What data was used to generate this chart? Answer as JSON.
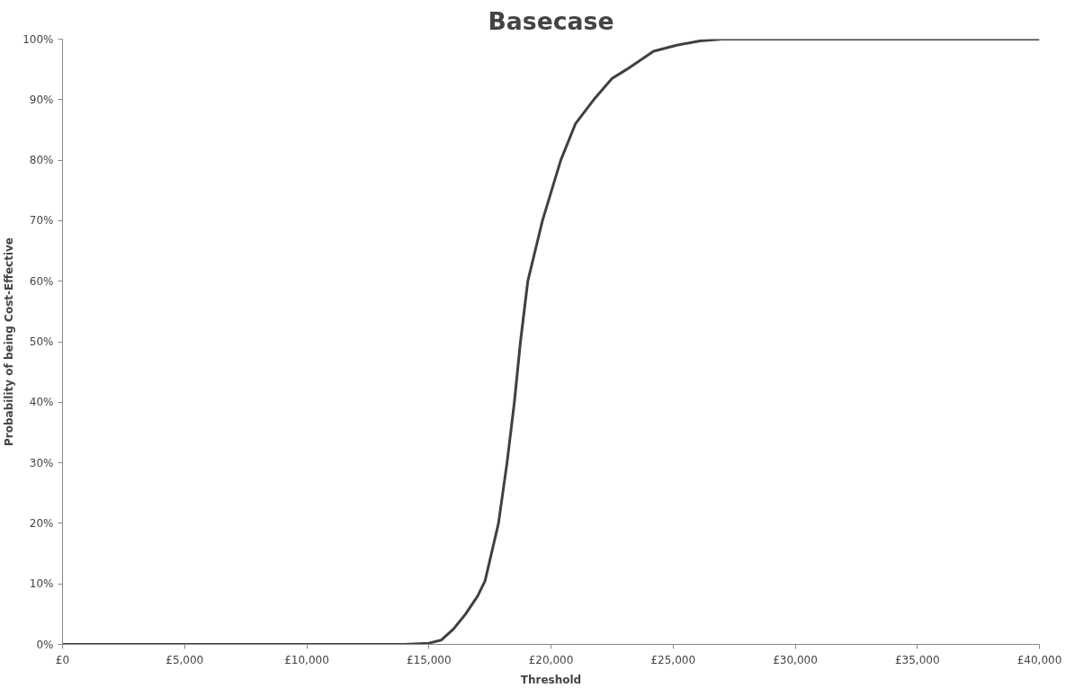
{
  "chart_data": {
    "type": "line",
    "title": "Basecase",
    "xlabel": "Threshold",
    "ylabel": "Probability of being Cost-Effective",
    "xlim": [
      0,
      40000
    ],
    "ylim": [
      0,
      100
    ],
    "xticks": [
      {
        "value": 0,
        "label": "£0"
      },
      {
        "value": 5000,
        "label": "£5,000"
      },
      {
        "value": 10000,
        "label": "£10,000"
      },
      {
        "value": 15000,
        "label": "£15,000"
      },
      {
        "value": 20000,
        "label": "£20,000"
      },
      {
        "value": 25000,
        "label": "£25,000"
      },
      {
        "value": 30000,
        "label": "£30,000"
      },
      {
        "value": 35000,
        "label": "£35,000"
      },
      {
        "value": 40000,
        "label": "£40,000"
      }
    ],
    "yticks": [
      {
        "value": 0,
        "label": "0%"
      },
      {
        "value": 10,
        "label": "10%"
      },
      {
        "value": 20,
        "label": "20%"
      },
      {
        "value": 30,
        "label": "30%"
      },
      {
        "value": 40,
        "label": "40%"
      },
      {
        "value": 50,
        "label": "50%"
      },
      {
        "value": 60,
        "label": "60%"
      },
      {
        "value": 70,
        "label": "70%"
      },
      {
        "value": 80,
        "label": "80%"
      },
      {
        "value": 90,
        "label": "90%"
      },
      {
        "value": 100,
        "label": "100%"
      }
    ],
    "x": [
      0,
      5000,
      10000,
      12000,
      14000,
      15000,
      15500,
      16000,
      16500,
      17000,
      17300,
      17850,
      18200,
      18500,
      18750,
      19050,
      19650,
      20400,
      21000,
      21750,
      22500,
      23100,
      24200,
      25150,
      26100,
      27000,
      30000,
      35000,
      40000
    ],
    "series": [
      {
        "color": "#404040",
        "values": [
          0,
          0,
          0,
          0,
          0,
          0.2,
          0.7,
          2.5,
          5,
          8,
          10.5,
          20,
          30,
          40,
          50,
          60,
          70,
          80,
          86,
          90,
          93.5,
          95,
          98,
          99,
          99.7,
          100,
          100,
          100,
          100
        ]
      }
    ],
    "grid": false,
    "marker": "none",
    "line_style": "solid"
  }
}
